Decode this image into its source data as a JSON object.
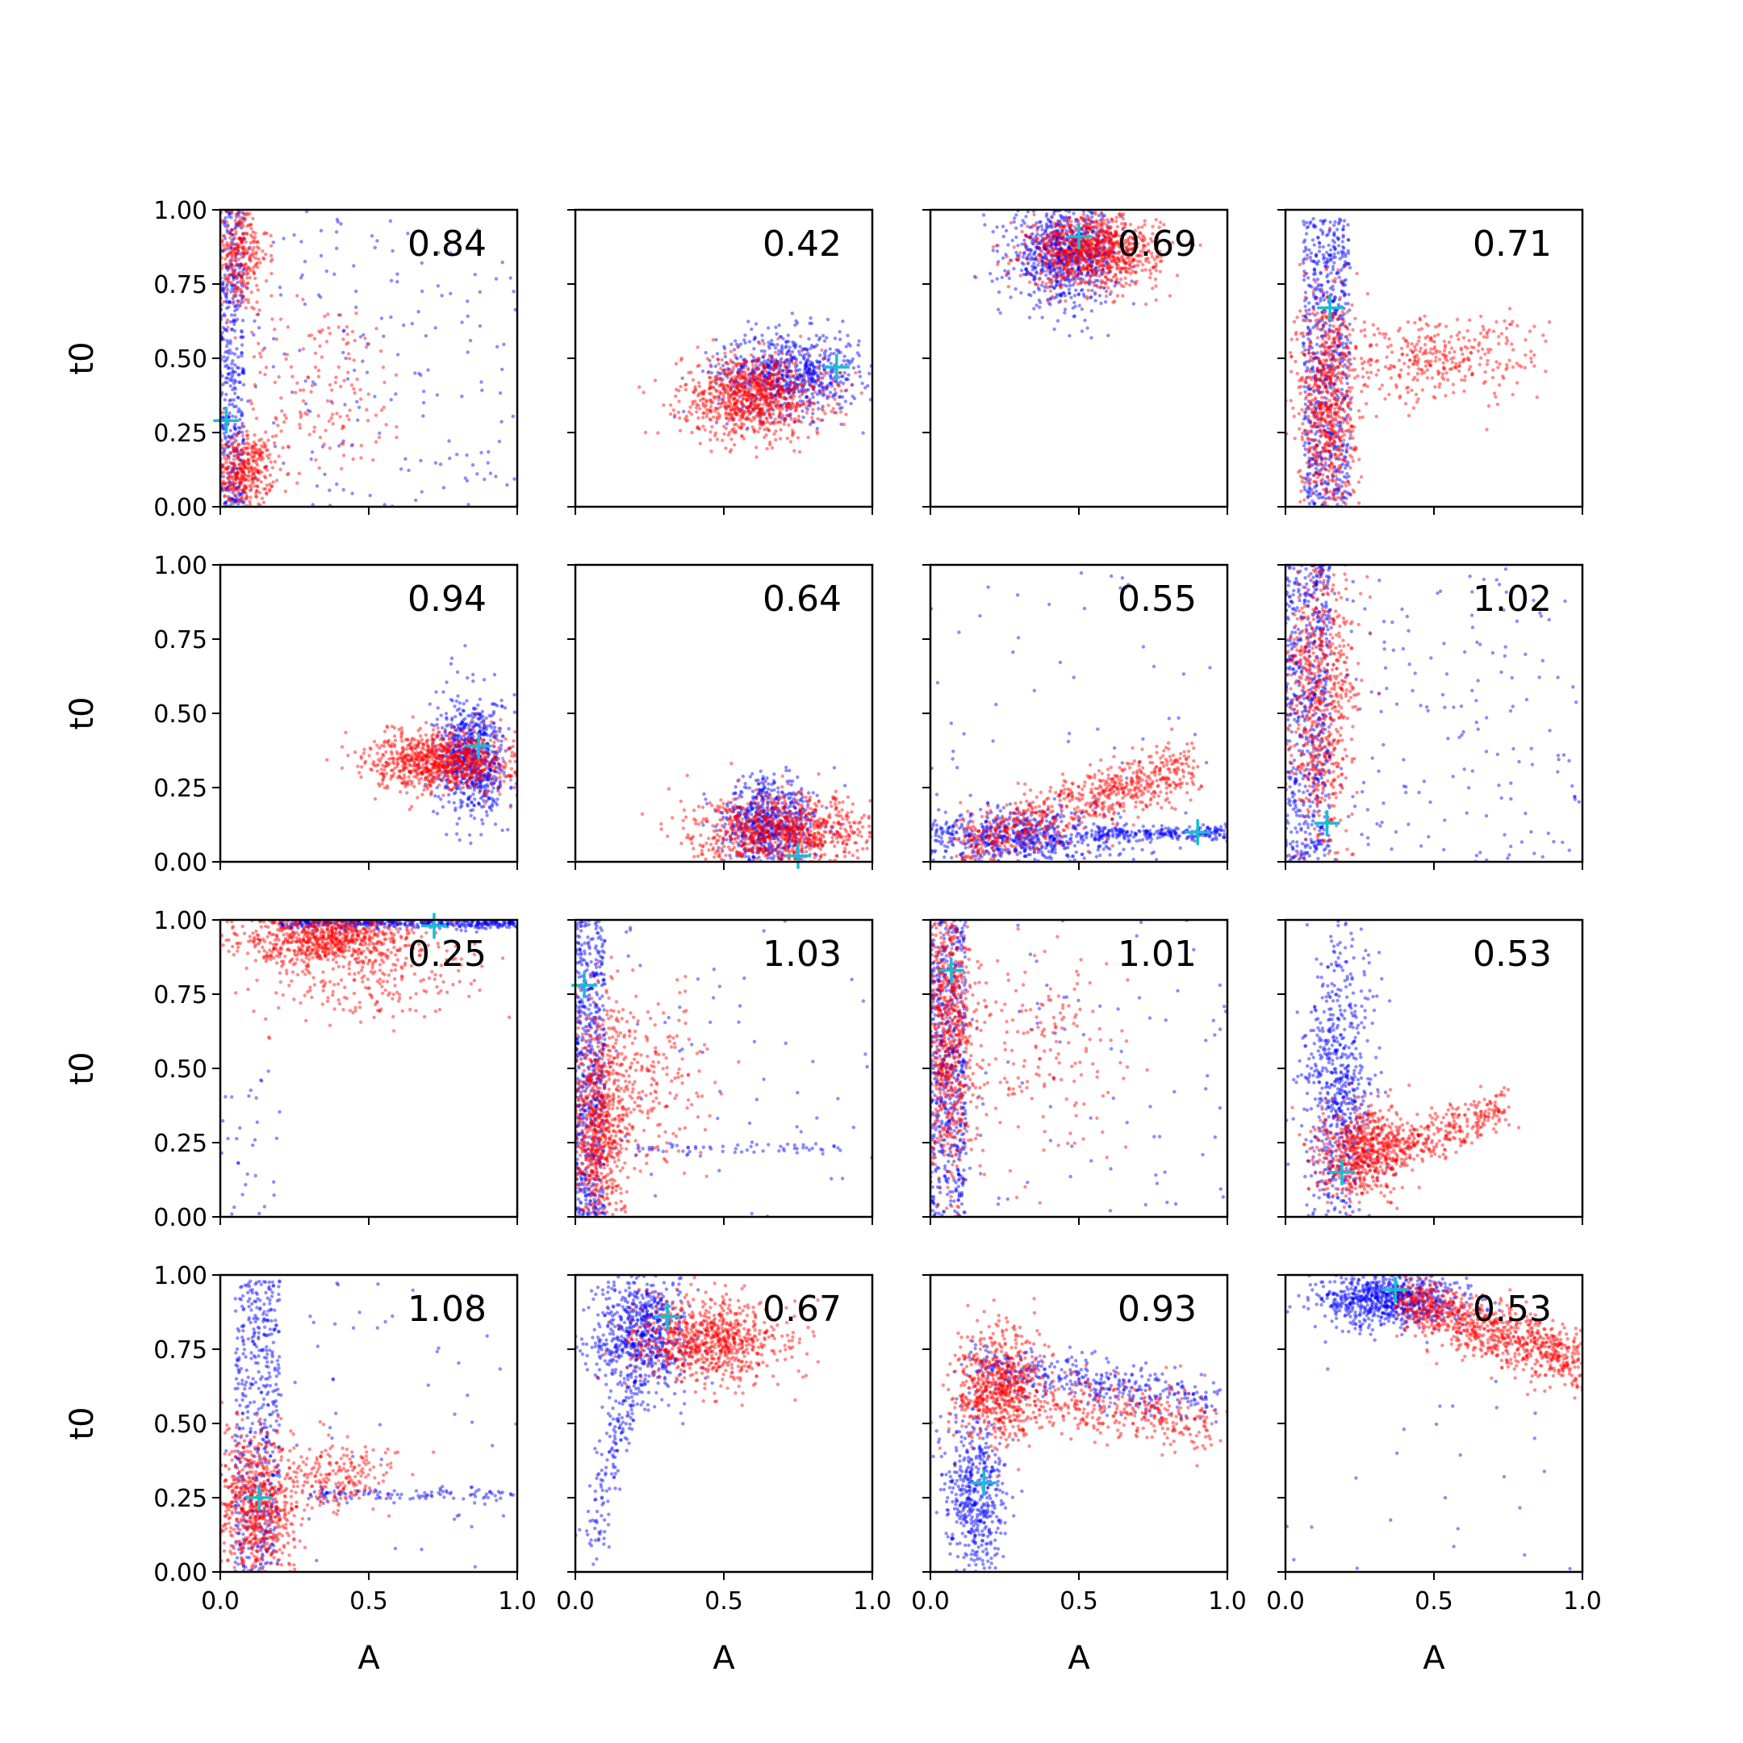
{
  "chart_data": {
    "type": "scatter",
    "layout": "4x4 grid of panels",
    "shared_axes": true,
    "xlabel": "A",
    "ylabel": "t0",
    "xlim": [
      0.0,
      1.0
    ],
    "ylim": [
      0.0,
      1.0
    ],
    "x_tick_labels": [
      "0.0",
      "0.5",
      "1.0"
    ],
    "x_tick_values": [
      0.0,
      0.5,
      1.0
    ],
    "y_tick_labels": [
      "0.00",
      "0.25",
      "0.50",
      "0.75",
      "1.00"
    ],
    "y_tick_values": [
      0.0,
      0.25,
      0.5,
      0.75,
      1.0
    ],
    "grid": false,
    "colors": {
      "series_a": "#0000ff",
      "series_b": "#ff0000",
      "marker": "#17becf"
    },
    "panels": [
      {
        "annotation": "0.84",
        "marker": [
          0.02,
          0.29
        ],
        "clouds": [
          {
            "series": "series_a",
            "kind": "uniform",
            "x": [
              0.0,
              1.0
            ],
            "y": [
              0.0,
              1.0
            ],
            "n": 180
          },
          {
            "series": "series_a",
            "kind": "vband",
            "x": [
              0.0,
              0.08
            ],
            "y": [
              0.0,
              1.0
            ],
            "n": 420
          },
          {
            "series": "series_b",
            "kind": "blob",
            "c": [
              0.08,
              0.12
            ],
            "s": [
              0.05,
              0.06
            ],
            "n": 380
          },
          {
            "series": "series_b",
            "kind": "blob",
            "c": [
              0.06,
              0.85
            ],
            "s": [
              0.05,
              0.1
            ],
            "n": 320
          },
          {
            "series": "series_b",
            "kind": "blob",
            "c": [
              0.35,
              0.4
            ],
            "s": [
              0.15,
              0.15
            ],
            "n": 160
          }
        ]
      },
      {
        "annotation": "0.42",
        "marker": [
          0.88,
          0.47
        ],
        "clouds": [
          {
            "series": "series_a",
            "kind": "blob",
            "c": [
              0.72,
              0.45
            ],
            "s": [
              0.12,
              0.07
            ],
            "n": 700
          },
          {
            "series": "series_b",
            "kind": "blob",
            "c": [
              0.6,
              0.37
            ],
            "s": [
              0.12,
              0.07
            ],
            "n": 900
          }
        ]
      },
      {
        "annotation": "0.69",
        "marker": [
          0.5,
          0.91
        ],
        "clouds": [
          {
            "series": "series_a",
            "kind": "blob",
            "c": [
              0.45,
              0.85
            ],
            "s": [
              0.09,
              0.08
            ],
            "n": 800
          },
          {
            "series": "series_b",
            "kind": "blob",
            "c": [
              0.55,
              0.86
            ],
            "s": [
              0.11,
              0.06
            ],
            "n": 900
          }
        ]
      },
      {
        "annotation": "0.71",
        "marker": [
          0.15,
          0.67
        ],
        "clouds": [
          {
            "series": "series_a",
            "kind": "vband",
            "x": [
              0.06,
              0.22
            ],
            "y": [
              0.0,
              0.97
            ],
            "n": 700
          },
          {
            "series": "series_b",
            "kind": "blob",
            "c": [
              0.14,
              0.35
            ],
            "s": [
              0.05,
              0.2
            ],
            "n": 700
          },
          {
            "series": "series_b",
            "kind": "blob",
            "c": [
              0.5,
              0.5
            ],
            "s": [
              0.18,
              0.07
            ],
            "n": 350
          }
        ]
      },
      {
        "annotation": "0.94",
        "marker": [
          0.87,
          0.39
        ],
        "clouds": [
          {
            "series": "series_a",
            "kind": "blob",
            "c": [
              0.85,
              0.35
            ],
            "s": [
              0.06,
              0.1
            ],
            "n": 700
          },
          {
            "series": "series_b",
            "kind": "blob",
            "c": [
              0.75,
              0.34
            ],
            "s": [
              0.12,
              0.05
            ],
            "n": 900
          }
        ]
      },
      {
        "annotation": "0.64",
        "marker": [
          0.75,
          0.02
        ],
        "clouds": [
          {
            "series": "series_a",
            "kind": "blob",
            "c": [
              0.65,
              0.12
            ],
            "s": [
              0.08,
              0.08
            ],
            "n": 700
          },
          {
            "series": "series_b",
            "kind": "blob",
            "c": [
              0.7,
              0.1
            ],
            "s": [
              0.15,
              0.06
            ],
            "n": 900
          }
        ]
      },
      {
        "annotation": "0.55",
        "marker": [
          0.9,
          0.1
        ],
        "clouds": [
          {
            "series": "series_a",
            "kind": "blob",
            "c": [
              0.3,
              0.08
            ],
            "s": [
              0.18,
              0.05
            ],
            "n": 700
          },
          {
            "series": "series_a",
            "kind": "line",
            "x": [
              0.55,
              1.0
            ],
            "y": [
              0.09,
              0.1
            ],
            "noise": 0.012,
            "n": 220
          },
          {
            "series": "series_a",
            "kind": "uniform",
            "x": [
              0.0,
              1.0
            ],
            "y": [
              0.0,
              1.0
            ],
            "n": 50
          },
          {
            "series": "series_b",
            "kind": "trend",
            "x": [
              0.1,
              0.88
            ],
            "y": [
              0.05,
              0.32
            ],
            "noise": 0.05,
            "n": 750
          }
        ]
      },
      {
        "annotation": "1.02",
        "marker": [
          0.14,
          0.13
        ],
        "clouds": [
          {
            "series": "series_a",
            "kind": "vband",
            "x": [
              0.0,
              0.15
            ],
            "y": [
              0.0,
              1.0
            ],
            "n": 600
          },
          {
            "series": "series_a",
            "kind": "uniform",
            "x": [
              0.0,
              1.0
            ],
            "y": [
              0.0,
              1.0
            ],
            "n": 200
          },
          {
            "series": "series_b",
            "kind": "blob",
            "c": [
              0.12,
              0.55
            ],
            "s": [
              0.06,
              0.25
            ],
            "n": 700
          }
        ]
      },
      {
        "annotation": "0.25",
        "marker": [
          0.72,
          0.98
        ],
        "clouds": [
          {
            "series": "series_a",
            "kind": "line",
            "x": [
              0.2,
              1.0
            ],
            "y": [
              0.99,
              0.99
            ],
            "noise": 0.01,
            "n": 500
          },
          {
            "series": "series_a",
            "kind": "scatter_low",
            "x": [
              0.0,
              0.2
            ],
            "y": [
              0.0,
              0.5
            ],
            "n": 30
          },
          {
            "series": "series_b",
            "kind": "blob",
            "c": [
              0.35,
              0.94
            ],
            "s": [
              0.15,
              0.05
            ],
            "n": 800
          },
          {
            "series": "series_b",
            "kind": "blob",
            "c": [
              0.5,
              0.8
            ],
            "s": [
              0.22,
              0.07
            ],
            "n": 200
          }
        ]
      },
      {
        "annotation": "1.03",
        "marker": [
          0.03,
          0.78
        ],
        "clouds": [
          {
            "series": "series_a",
            "kind": "vband",
            "x": [
              0.0,
              0.1
            ],
            "y": [
              0.0,
              1.0
            ],
            "n": 600
          },
          {
            "series": "series_a",
            "kind": "line",
            "x": [
              0.2,
              0.9
            ],
            "y": [
              0.23,
              0.23
            ],
            "noise": 0.01,
            "n": 60
          },
          {
            "series": "series_a",
            "kind": "uniform",
            "x": [
              0.0,
              1.0
            ],
            "y": [
              0.0,
              1.0
            ],
            "n": 60
          },
          {
            "series": "series_b",
            "kind": "blob",
            "c": [
              0.08,
              0.3
            ],
            "s": [
              0.05,
              0.2
            ],
            "n": 800
          },
          {
            "series": "series_b",
            "kind": "blob",
            "c": [
              0.25,
              0.45
            ],
            "s": [
              0.1,
              0.15
            ],
            "n": 200
          }
        ]
      },
      {
        "annotation": "1.01",
        "marker": [
          0.07,
          0.83
        ],
        "clouds": [
          {
            "series": "series_a",
            "kind": "vband",
            "x": [
              0.0,
              0.12
            ],
            "y": [
              0.0,
              1.0
            ],
            "n": 600
          },
          {
            "series": "series_a",
            "kind": "uniform",
            "x": [
              0.0,
              1.0
            ],
            "y": [
              0.0,
              1.0
            ],
            "n": 90
          },
          {
            "series": "series_b",
            "kind": "blob",
            "c": [
              0.06,
              0.6
            ],
            "s": [
              0.04,
              0.25
            ],
            "n": 700
          },
          {
            "series": "series_b",
            "kind": "blob",
            "c": [
              0.35,
              0.55
            ],
            "s": [
              0.15,
              0.18
            ],
            "n": 200
          }
        ]
      },
      {
        "annotation": "0.53",
        "marker": [
          0.19,
          0.15
        ],
        "clouds": [
          {
            "series": "series_a",
            "kind": "blob",
            "c": [
              0.18,
              0.4
            ],
            "s": [
              0.06,
              0.25
            ],
            "n": 700
          },
          {
            "series": "series_b",
            "kind": "blob",
            "c": [
              0.25,
              0.22
            ],
            "s": [
              0.08,
              0.08
            ],
            "n": 600
          },
          {
            "series": "series_b",
            "kind": "trend",
            "x": [
              0.3,
              0.75
            ],
            "y": [
              0.2,
              0.36
            ],
            "noise": 0.04,
            "n": 350
          }
        ]
      },
      {
        "annotation": "1.08",
        "marker": [
          0.13,
          0.25
        ],
        "clouds": [
          {
            "series": "series_a",
            "kind": "vband",
            "x": [
              0.05,
              0.2
            ],
            "y": [
              0.0,
              0.98
            ],
            "n": 500
          },
          {
            "series": "series_a",
            "kind": "line",
            "x": [
              0.3,
              1.0
            ],
            "y": [
              0.26,
              0.26
            ],
            "noise": 0.012,
            "n": 110
          },
          {
            "series": "series_a",
            "kind": "uniform",
            "x": [
              0.0,
              1.0
            ],
            "y": [
              0.0,
              1.0
            ],
            "n": 60
          },
          {
            "series": "series_b",
            "kind": "blob",
            "c": [
              0.12,
              0.22
            ],
            "s": [
              0.07,
              0.12
            ],
            "n": 700
          },
          {
            "series": "series_b",
            "kind": "blob",
            "c": [
              0.4,
              0.32
            ],
            "s": [
              0.1,
              0.06
            ],
            "n": 200
          }
        ]
      },
      {
        "annotation": "0.67",
        "marker": [
          0.31,
          0.86
        ],
        "clouds": [
          {
            "series": "series_a",
            "kind": "blob",
            "c": [
              0.22,
              0.8
            ],
            "s": [
              0.08,
              0.1
            ],
            "n": 700
          },
          {
            "series": "series_a",
            "kind": "trend",
            "x": [
              0.05,
              0.2
            ],
            "y": [
              0.1,
              0.65
            ],
            "noise": 0.05,
            "n": 150
          },
          {
            "series": "series_b",
            "kind": "blob",
            "c": [
              0.45,
              0.78
            ],
            "s": [
              0.13,
              0.07
            ],
            "n": 800
          }
        ]
      },
      {
        "annotation": "0.93",
        "marker": [
          0.18,
          0.3
        ],
        "clouds": [
          {
            "series": "series_a",
            "kind": "blob",
            "c": [
              0.15,
              0.25
            ],
            "s": [
              0.05,
              0.14
            ],
            "n": 500
          },
          {
            "series": "series_a",
            "kind": "trend",
            "x": [
              0.15,
              0.95
            ],
            "y": [
              0.7,
              0.58
            ],
            "noise": 0.04,
            "n": 400
          },
          {
            "series": "series_b",
            "kind": "blob",
            "c": [
              0.22,
              0.62
            ],
            "s": [
              0.08,
              0.1
            ],
            "n": 600
          },
          {
            "series": "series_b",
            "kind": "trend",
            "x": [
              0.2,
              0.95
            ],
            "y": [
              0.6,
              0.5
            ],
            "noise": 0.05,
            "n": 400
          }
        ]
      },
      {
        "annotation": "0.53",
        "marker": [
          0.37,
          0.95
        ],
        "clouds": [
          {
            "series": "series_a",
            "kind": "blob",
            "c": [
              0.35,
              0.92
            ],
            "s": [
              0.12,
              0.05
            ],
            "n": 800
          },
          {
            "series": "series_a",
            "kind": "uniform",
            "x": [
              0.0,
              1.0
            ],
            "y": [
              0.0,
              0.7
            ],
            "n": 25
          },
          {
            "series": "series_b",
            "kind": "trend",
            "x": [
              0.4,
              1.0
            ],
            "y": [
              0.92,
              0.7
            ],
            "noise": 0.05,
            "n": 900
          }
        ]
      }
    ]
  }
}
